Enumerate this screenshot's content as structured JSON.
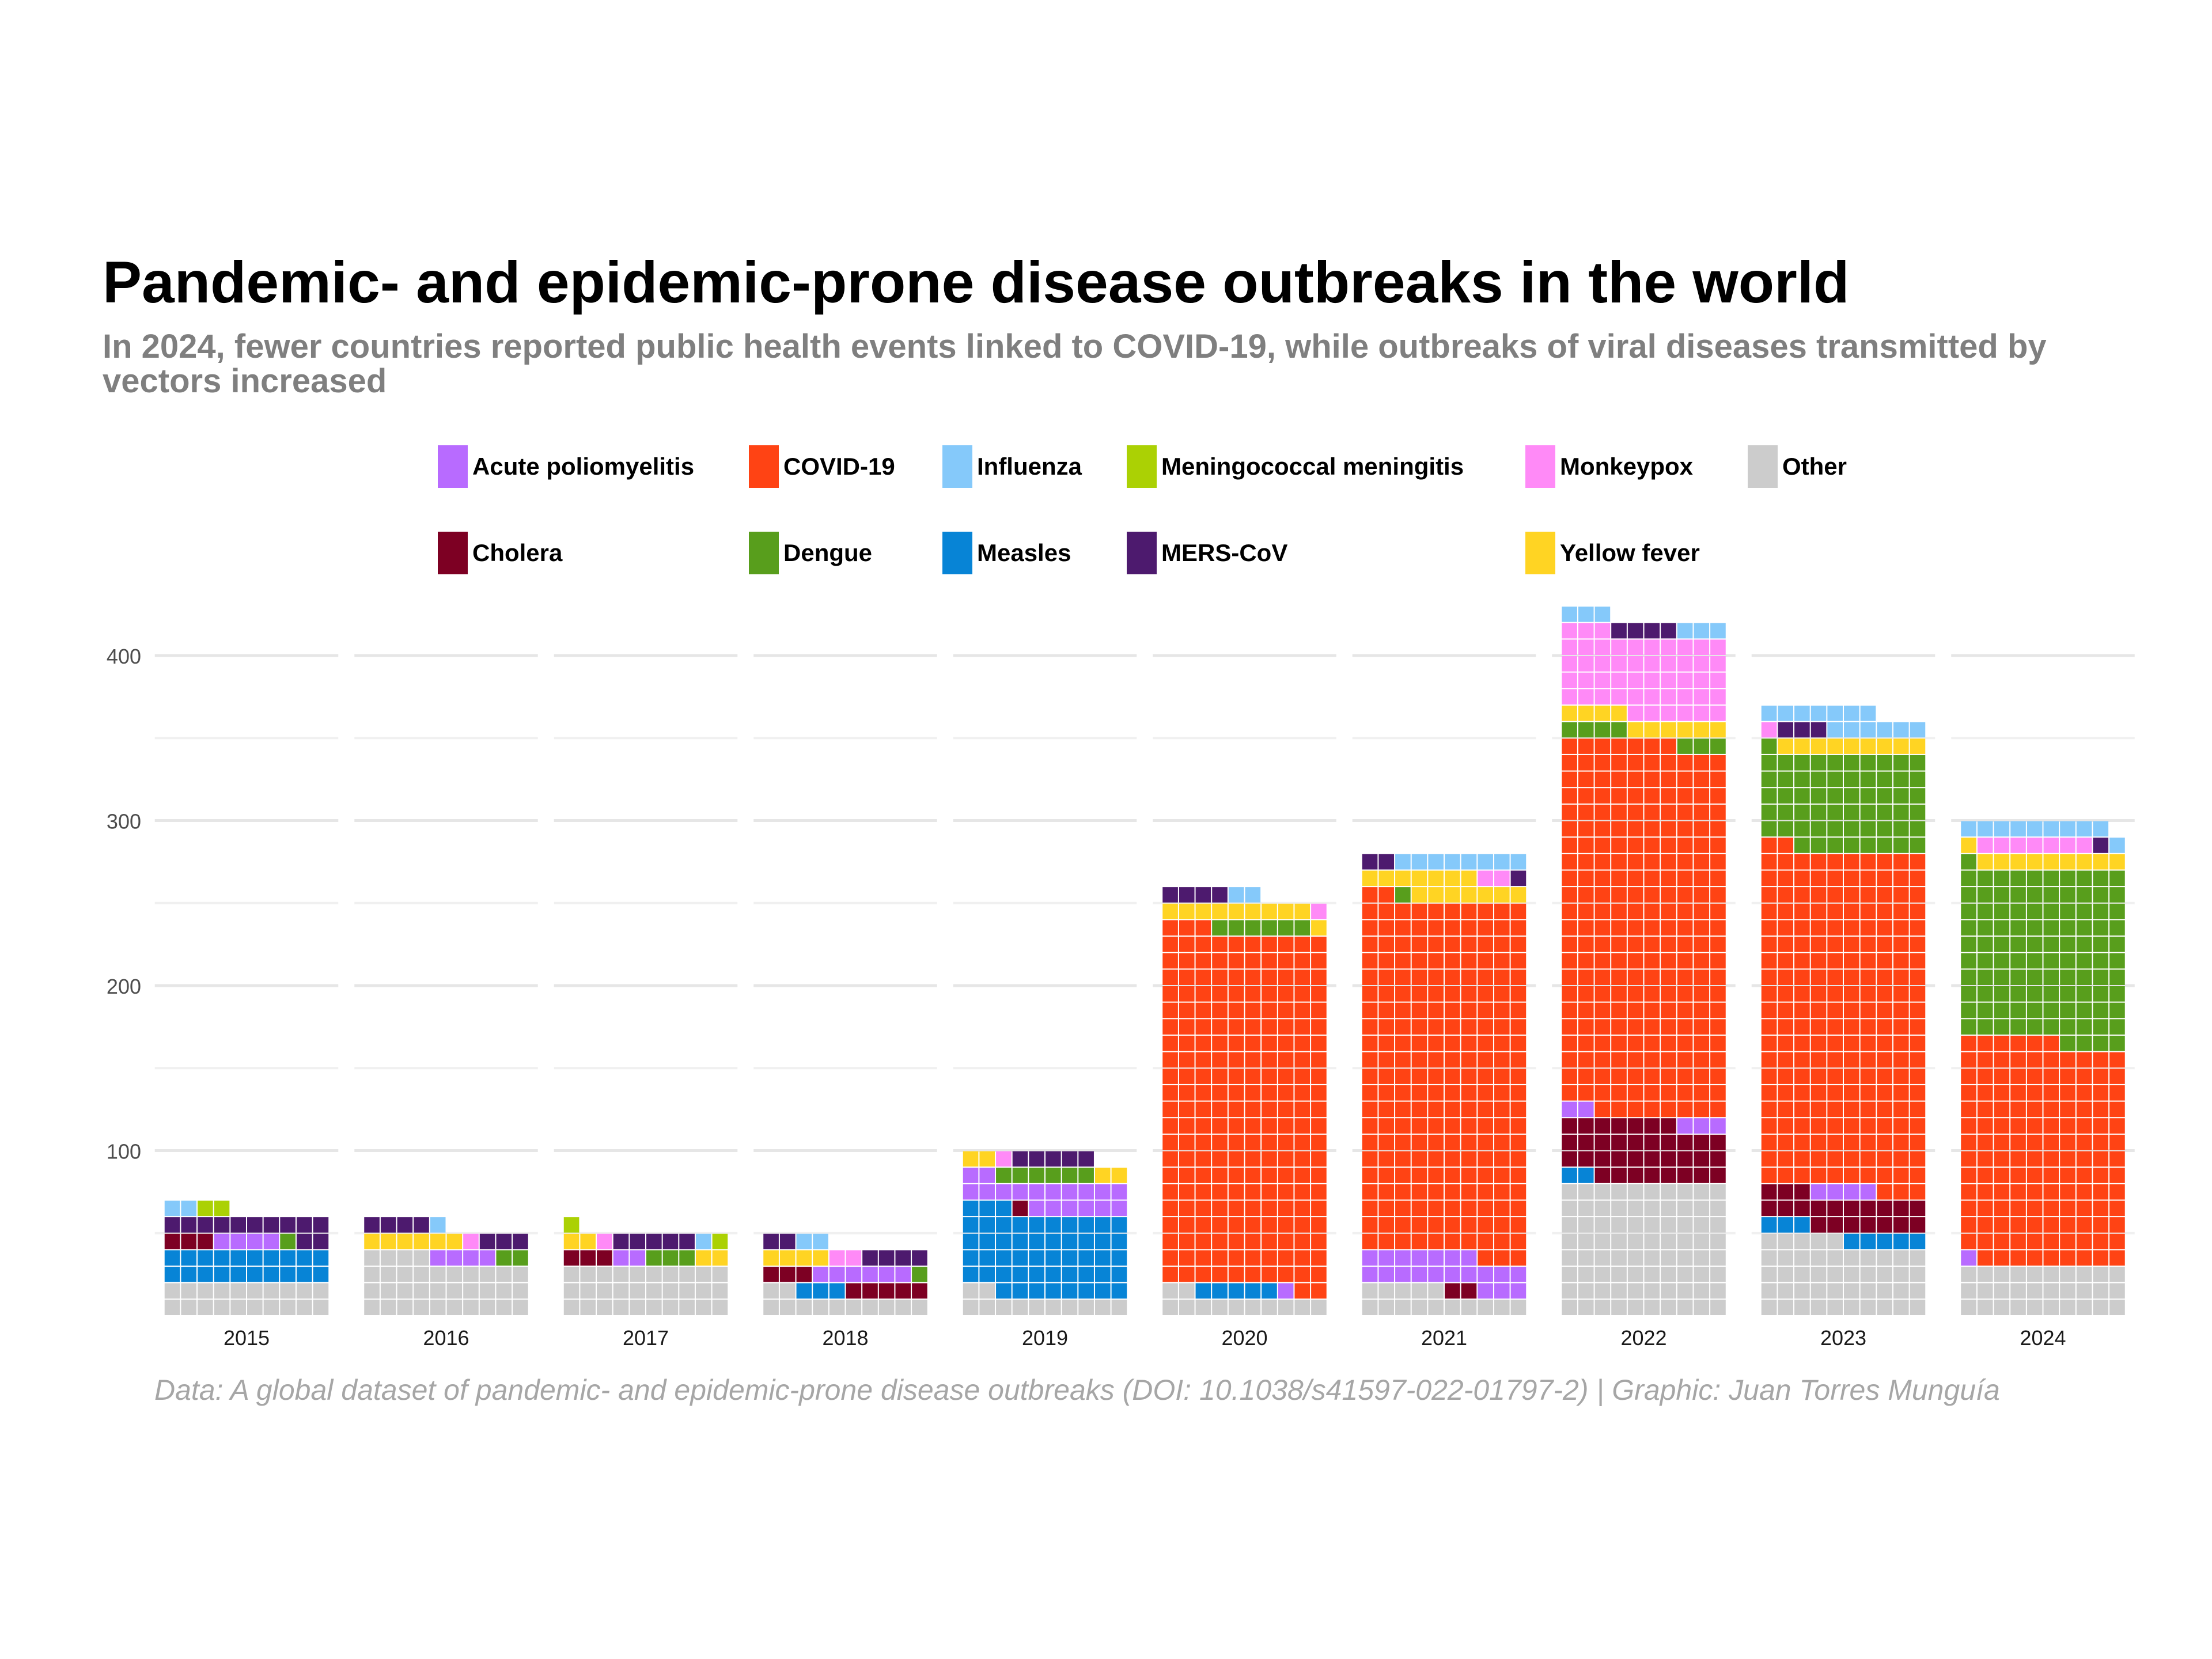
{
  "title": "Pandemic- and epidemic-prone disease outbreaks in the world",
  "subtitle": "In 2024, fewer countries reported public health events linked to COVID-19, while outbreaks of viral diseases transmitted by vectors increased",
  "caption": "Data: A global dataset of pandemic- and epidemic-prone disease outbreaks (DOI: 10.1038/s41597-022-01797-2) | Graphic: Juan Torres Munguía",
  "legend": [
    {
      "label": "Acute poliomyelitis",
      "color": "#b86bff"
    },
    {
      "label": "COVID-19",
      "color": "#ff4314"
    },
    {
      "label": "Influenza",
      "color": "#85c9fa"
    },
    {
      "label": "Meningococcal meningitis",
      "color": "#abd104"
    },
    {
      "label": "Monkeypox",
      "color": "#ff8af7"
    },
    {
      "label": "Other",
      "color": "#cccccc"
    },
    {
      "label": "Cholera",
      "color": "#7d0023"
    },
    {
      "label": "Dengue",
      "color": "#589e1c"
    },
    {
      "label": "Measles",
      "color": "#0784d6"
    },
    {
      "label": "MERS-CoV",
      "color": "#4d1a6e"
    },
    {
      "label": "Yellow fever",
      "color": "#ffd423"
    }
  ],
  "chart_data": {
    "type": "waffle",
    "x_categories": [
      "2015",
      "2016",
      "2017",
      "2018",
      "2019",
      "2020",
      "2021",
      "2022",
      "2023",
      "2024"
    ],
    "y_ticks": [
      100,
      200,
      300,
      400
    ],
    "ylim": [
      0,
      430
    ],
    "cell_size": 1,
    "cells_per_row": 10,
    "grid": true,
    "legend_position": "top",
    "series_order": [
      "Other",
      "Measles",
      "Cholera",
      "Acute poliomyelitis",
      "COVID-19",
      "Dengue",
      "Yellow fever",
      "Monkeypox",
      "MERS-CoV",
      "Influenza",
      "Meningococcal meningitis"
    ],
    "values": {
      "2015": {
        "Other": 20,
        "Measles": 20,
        "MERS-CoV": 12,
        "Acute poliomyelitis": 4,
        "Cholera": 3,
        "Influenza": 2,
        "Meningococcal meningitis": 2,
        "Dengue": 1
      },
      "2016": {
        "Other": 34,
        "MERS-CoV": 7,
        "Yellow fever": 6,
        "Acute poliomyelitis": 4,
        "Dengue": 2,
        "Influenza": 1,
        "Monkeypox": 1
      },
      "2017": {
        "Other": 30,
        "MERS-CoV": 5,
        "Yellow fever": 4,
        "Dengue": 3,
        "Cholera": 3,
        "Acute poliomyelitis": 2,
        "Meningococcal meningitis": 2,
        "Influenza": 1,
        "Monkeypox": 1
      },
      "2018": {
        "Other": 12,
        "Cholera": 8,
        "Acute poliomyelitis": 6,
        "MERS-CoV": 6,
        "Yellow fever": 4,
        "Measles": 3,
        "Influenza": 2,
        "Monkeypox": 2,
        "Dengue": 1
      },
      "2019": {
        "Measles": 51,
        "Acute poliomyelitis": 18,
        "Other": 12,
        "MERS-CoV": 5,
        "Dengue": 6,
        "Yellow fever": 4,
        "Cholera": 1,
        "Monkeypox": 1
      },
      "2020": {
        "COVID-19": 215,
        "Other": 12,
        "Yellow fever": 10,
        "Dengue": 6,
        "Measles": 5,
        "MERS-CoV": 4,
        "Influenza": 2,
        "Acute poliomyelitis": 1,
        "Monkeypox": 1
      },
      "2021": {
        "COVID-19": 215,
        "Acute poliomyelitis": 20,
        "Other": 15,
        "Yellow fever": 14,
        "Influenza": 8,
        "MERS-CoV": 3,
        "Cholera": 2,
        "Monkeypox": 2,
        "Dengue": 1
      },
      "2022": {
        "COVID-19": 225,
        "Other": 80,
        "Monkeypox": 49,
        "Cholera": 35,
        "Yellow fever": 10,
        "Acute poliomyelitis": 5,
        "Dengue": 7,
        "Influenza": 6,
        "MERS-CoV": 4,
        "Measles": 2
      },
      "2023": {
        "COVID-19": 205,
        "Other": 45,
        "Dengue": 59,
        "Cholera": 20,
        "Yellow fever": 9,
        "Influenza": 13,
        "Measles": 8,
        "Acute poliomyelitis": 4,
        "MERS-CoV": 3,
        "Monkeypox": 1
      },
      "2024": {
        "COVID-19": 135,
        "Dengue": 105,
        "Other": 30,
        "Yellow fever": 10,
        "Influenza": 10,
        "Monkeypox": 7,
        "Acute poliomyelitis": 1,
        "MERS-CoV": 1
      }
    }
  }
}
